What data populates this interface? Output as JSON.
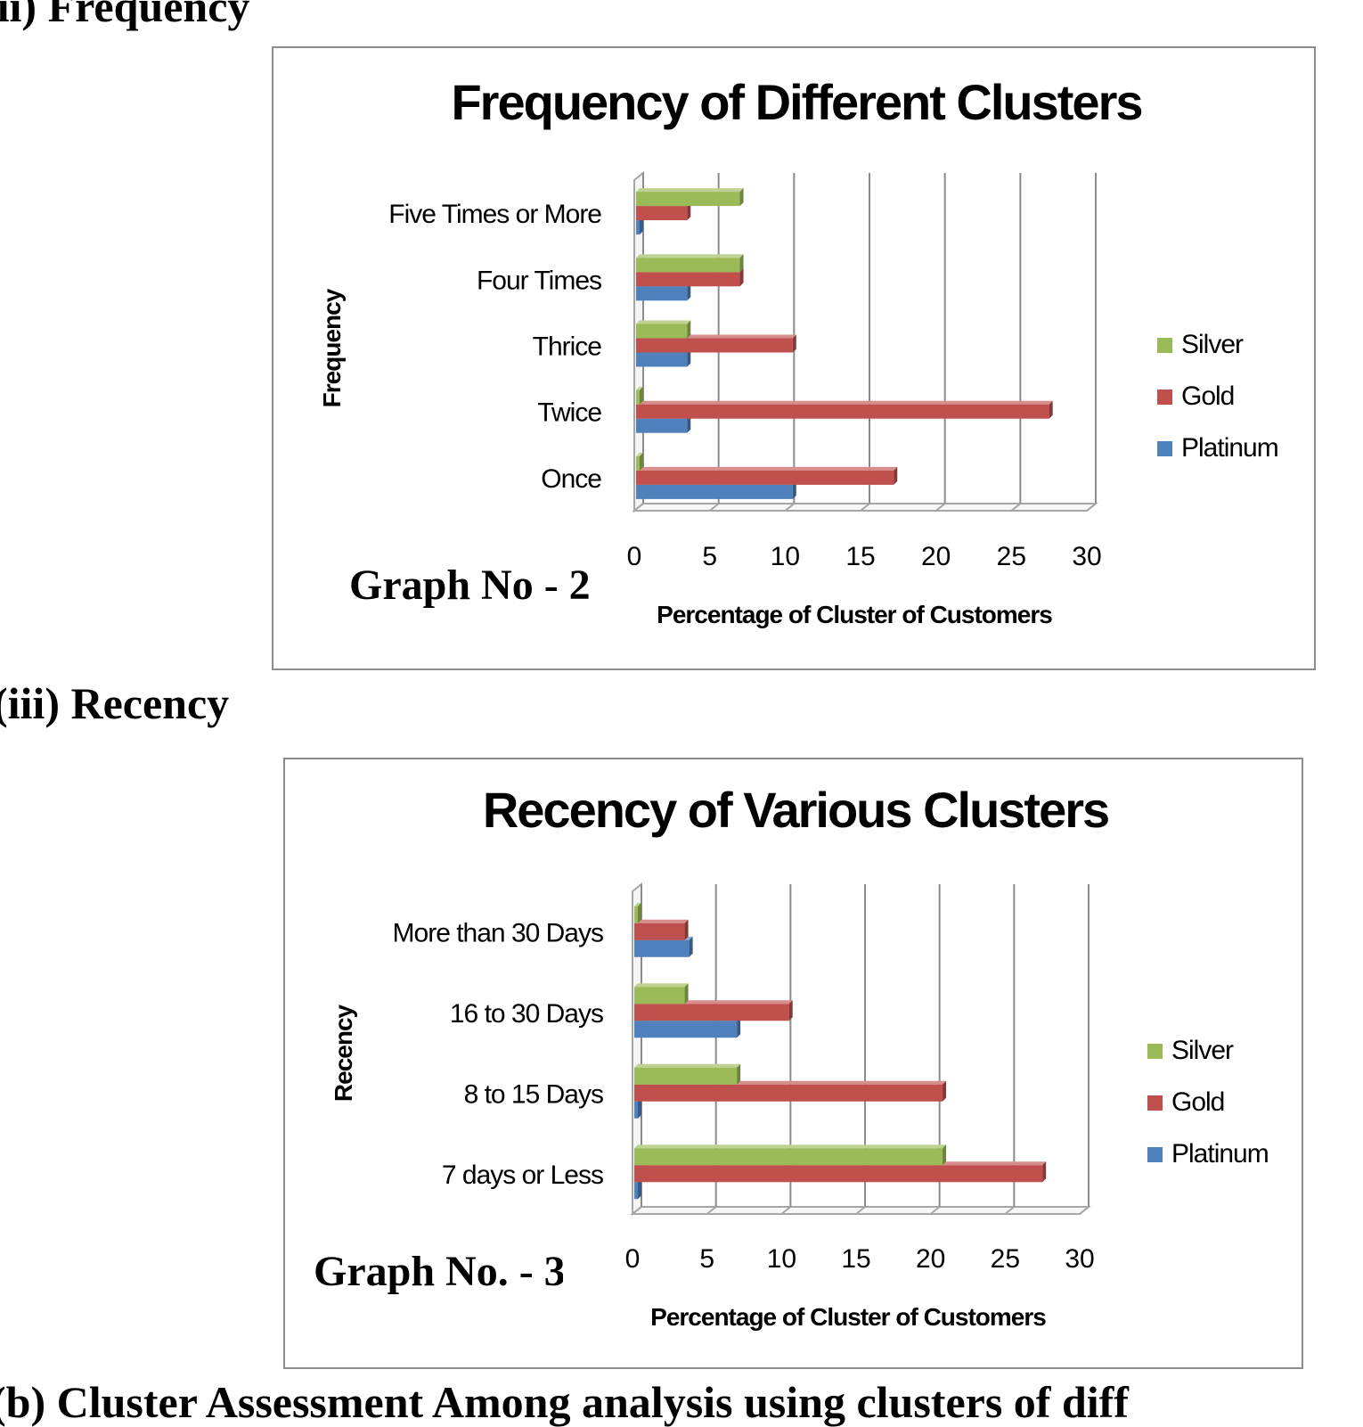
{
  "page": {
    "heading_top": "(ii) Frequency",
    "heading_mid": "(iii) Recency",
    "heading_bottom": "(b) Cluster Assessment Among analysis using clusters of diff"
  },
  "charts": [
    {
      "graph_label": "Graph No - 2",
      "chart_data": {
        "type": "bar",
        "orientation": "horizontal",
        "title": "Frequency of Different Clusters",
        "xlabel": "Percentage of Cluster of Customers",
        "ylabel": "Frequency",
        "categories": [
          "Once",
          "Twice",
          "Thrice",
          "Four Times",
          "Five Times or More"
        ],
        "series": [
          {
            "name": "Platinum",
            "color": "#4f81bd",
            "values": [
              10.5,
              3.5,
              3.5,
              3.5,
              0.2
            ]
          },
          {
            "name": "Gold",
            "color": "#c0504d",
            "values": [
              17.2,
              27.5,
              10.5,
              7,
              3.5
            ]
          },
          {
            "name": "Silver",
            "color": "#9bbb59",
            "values": [
              0.2,
              0.2,
              3.5,
              7,
              7
            ]
          }
        ],
        "xlim": [
          0,
          30
        ],
        "xticks": [
          0,
          5,
          10,
          15,
          20,
          25,
          30
        ],
        "grid": true,
        "legend_position": "right",
        "legend_labels": [
          "Silver",
          "Gold",
          "Platinum"
        ]
      }
    },
    {
      "graph_label": "Graph No. - 3",
      "chart_data": {
        "type": "bar",
        "orientation": "horizontal",
        "title": "Recency of Various Clusters",
        "xlabel": "Percentage of Cluster of Customers",
        "ylabel": "Recency",
        "categories": [
          "7 days or Less",
          "8  to 15 Days",
          "16 to 30 Days",
          "More than 30 Days"
        ],
        "series": [
          {
            "name": "Platinum",
            "color": "#4f81bd",
            "values": [
              0.3,
              0.3,
              7,
              3.8
            ]
          },
          {
            "name": "Gold",
            "color": "#c0504d",
            "values": [
              27.5,
              20.8,
              10.5,
              3.5
            ]
          },
          {
            "name": "Silver",
            "color": "#9bbb59",
            "values": [
              20.8,
              7,
              3.5,
              0.3
            ]
          }
        ],
        "xlim": [
          0,
          30
        ],
        "xticks": [
          0,
          5,
          10,
          15,
          20,
          25,
          30
        ],
        "grid": true,
        "legend_position": "right",
        "legend_labels": [
          "Silver",
          "Gold",
          "Platinum"
        ]
      }
    }
  ]
}
